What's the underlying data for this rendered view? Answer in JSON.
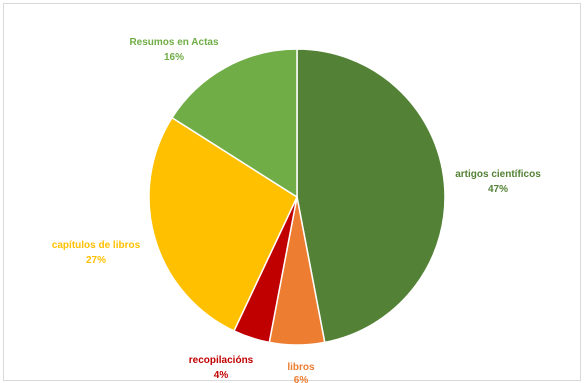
{
  "chart_data": {
    "type": "pie",
    "title": "",
    "slices": [
      {
        "label": "artigos científicos",
        "value": 47,
        "pct_label": "47%",
        "color": "#538135",
        "label_color": "#538135"
      },
      {
        "label": "libros",
        "value": 6,
        "pct_label": "6%",
        "color": "#ed7d31",
        "label_color": "#ed7d31"
      },
      {
        "label": "recopilacións",
        "value": 4,
        "pct_label": "4%",
        "color": "#c00000",
        "label_color": "#c00000"
      },
      {
        "label": "capítulos de libros",
        "value": 27,
        "pct_label": "27%",
        "color": "#ffc000",
        "label_color": "#ffc000"
      },
      {
        "label": "Resumos en Actas",
        "value": 16,
        "pct_label": "16%",
        "color": "#70ad47",
        "label_color": "#70ad47"
      }
    ],
    "start_angle": "12 o'clock",
    "direction": "clockwise",
    "legend": "none",
    "data_labels": "outside"
  }
}
